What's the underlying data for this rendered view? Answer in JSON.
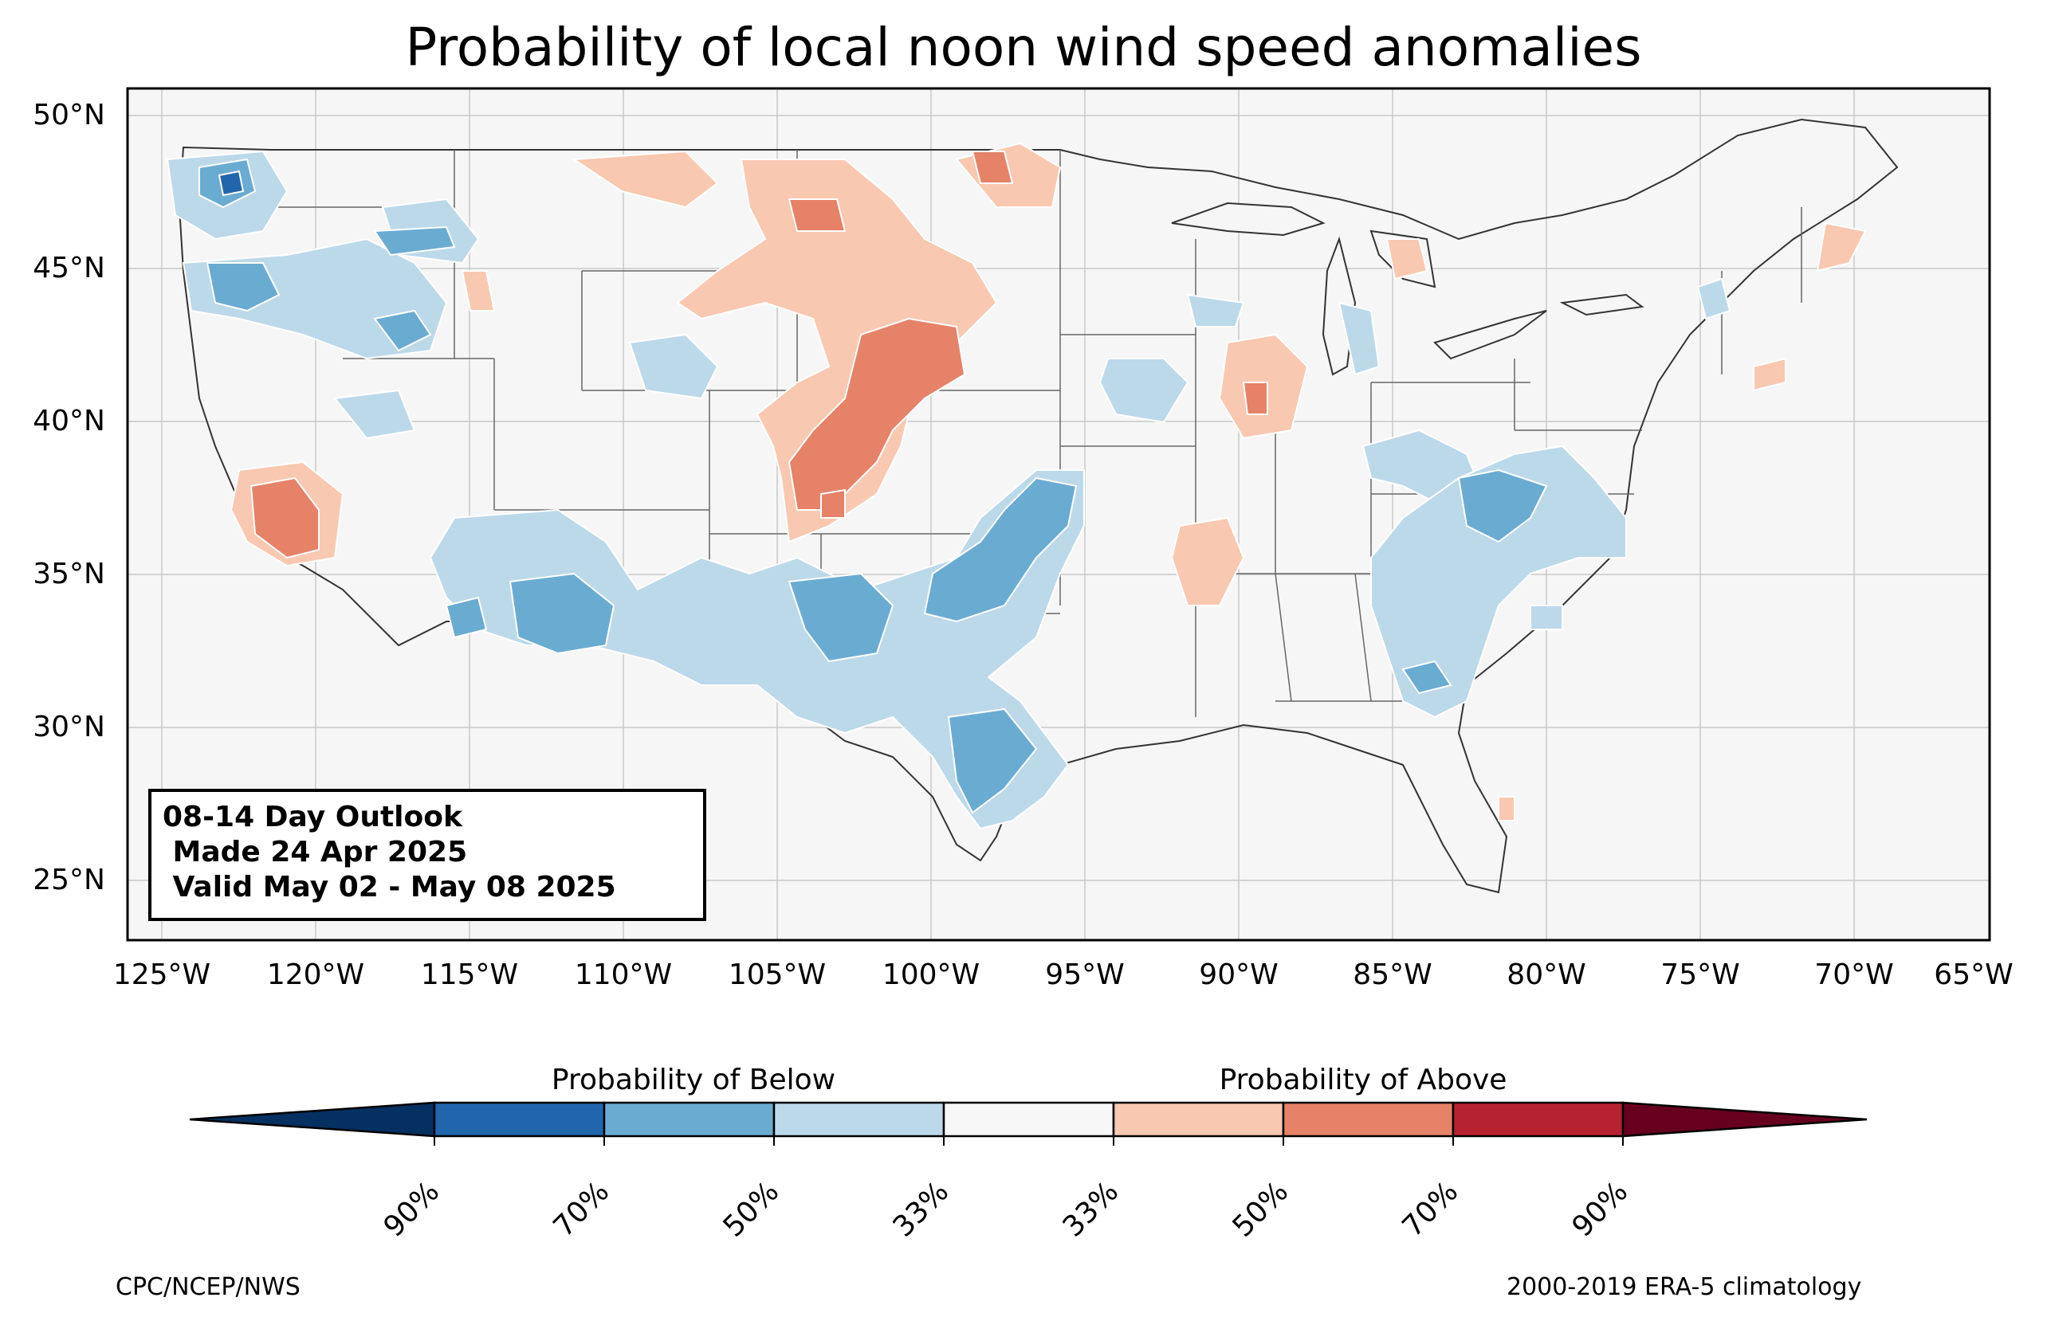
{
  "title": "Probability of local noon wind speed anomalies",
  "lat_labels": [
    "50°N",
    "45°N",
    "40°N",
    "35°N",
    "30°N",
    "25°N"
  ],
  "lon_labels": [
    "125°W",
    "120°W",
    "115°W",
    "110°W",
    "105°W",
    "100°W",
    "95°W",
    "90°W",
    "85°W",
    "80°W",
    "75°W",
    "70°W",
    "65°W"
  ],
  "outlook": {
    "line1": "08-14 Day Outlook",
    "line2": " Made 24 Apr 2025",
    "line3": " Valid May 02 - May 08 2025"
  },
  "colorbar": {
    "below_label": "Probability of Below",
    "above_label": "Probability of Above",
    "ticks": [
      "90%",
      "70%",
      "50%",
      "33%",
      "33%",
      "50%",
      "70%",
      "90%"
    ],
    "colors": [
      "#053061",
      "#2166ac",
      "#6aabd2",
      "#bcd9ea",
      "#f7f7f7",
      "#f9c8b0",
      "#e58268",
      "#b72230",
      "#67001f"
    ]
  },
  "credits": {
    "left": "CPC/NCEP/NWS",
    "right": "2000-2019 ERA-5 climatology"
  },
  "legend_colors": {
    "below_33": "#bcd9ea",
    "below_50": "#6aabd2",
    "below_70": "#2166ac",
    "above_33": "#f9c8b0",
    "above_50": "#e58268",
    "above_70": "#b72230",
    "land": "#f5f6f5"
  }
}
